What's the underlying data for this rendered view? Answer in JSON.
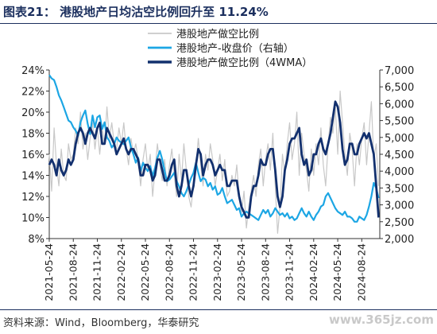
{
  "header": {
    "title": "图表21：   港股地产日均沽空比例回升至 11.24%"
  },
  "footer": {
    "source": "资料来源：Wind，Bloomberg，华泰研究"
  },
  "watermark": {
    "text": "www.365jz.com"
  },
  "chart_data": {
    "type": "line",
    "legend_position": "top-center",
    "grid": false,
    "x_ticks": [
      "2021-05-24",
      "2021-08-24",
      "2021-11-24",
      "2022-02-24",
      "2022-05-24",
      "2022-08-24",
      "2022-11-24",
      "2023-02-24",
      "2023-05-24",
      "2023-08-24",
      "2023-11-24",
      "2024-02-24",
      "2024-05-24",
      "2024-08-24"
    ],
    "y_left": {
      "range": [
        8,
        24
      ],
      "ticks": [
        "24%",
        "22%",
        "20%",
        "18%",
        "16%",
        "14%",
        "12%",
        "10%",
        "8%"
      ]
    },
    "y_right": {
      "range": [
        2000,
        7000
      ],
      "ticks": [
        "7,000",
        "6,500",
        "6,000",
        "5,500",
        "5,000",
        "4,500",
        "4,000",
        "3,500",
        "3,000",
        "2,500",
        "2,000"
      ]
    },
    "series": [
      {
        "name": "港股地产做空比例",
        "axis": "left",
        "color": "#c8c8c8",
        "x_ticks_index": [
          0.0,
          0.1,
          0.2,
          0.3,
          0.4,
          0.5,
          0.6,
          0.7,
          0.8,
          0.9,
          1.0,
          1.1,
          1.2,
          1.3,
          1.4,
          1.5,
          1.6,
          1.7,
          1.8,
          1.9,
          2.0,
          2.1,
          2.2,
          2.3,
          2.4,
          2.5,
          2.6,
          2.7,
          2.8,
          2.9,
          3.0,
          3.1,
          3.2,
          3.3,
          3.4,
          3.5,
          3.6,
          3.7,
          3.8,
          3.9,
          4.0,
          4.1,
          4.2,
          4.3,
          4.4,
          4.5,
          4.6,
          4.7,
          4.8,
          4.9,
          5.0,
          5.1,
          5.2,
          5.3,
          5.4,
          5.5,
          5.6,
          5.7,
          5.8,
          5.9,
          6.0,
          6.1,
          6.2,
          6.3,
          6.4,
          6.5,
          6.6,
          6.7,
          6.8,
          6.9,
          7.0,
          7.1,
          7.2,
          7.3,
          7.4,
          7.5,
          7.6,
          7.7,
          7.8,
          7.9,
          8.0,
          8.1,
          8.2,
          8.3,
          8.4,
          8.5,
          8.6,
          8.7,
          8.8,
          8.9,
          9.0,
          9.1,
          9.2,
          9.3,
          9.4,
          9.5,
          9.6,
          9.7,
          9.8,
          9.9,
          10.0,
          10.1,
          10.2,
          10.3,
          10.4,
          10.5,
          10.6,
          10.7,
          10.8,
          10.9,
          11.0,
          11.1,
          11.2,
          11.3,
          11.4,
          11.5,
          11.6,
          11.7,
          11.8,
          11.9,
          12.0,
          12.1,
          12.2,
          12.3,
          12.4,
          12.5,
          12.6,
          12.7,
          12.8,
          12.9,
          13.0,
          13.1,
          13.2,
          13.3,
          13.4,
          13.5,
          13.6,
          13.7
        ],
        "values": [
          16,
          12.5,
          18.5,
          15,
          13,
          16.5,
          14,
          13.5,
          17,
          15.5,
          16,
          18.5,
          17,
          20,
          16.5,
          18,
          15.5,
          17.5,
          19,
          16.5,
          18.5,
          16,
          18.5,
          17,
          20.5,
          17.5,
          19,
          17,
          16.5,
          18.5,
          17,
          19,
          16.5,
          15,
          17.5,
          16,
          17,
          15.5,
          13,
          15.5,
          17,
          14.5,
          16,
          12,
          14.5,
          17,
          15,
          13.5,
          15.5,
          13,
          15,
          16.5,
          14,
          12,
          16,
          13.5,
          17,
          14.5,
          12,
          11,
          13,
          15,
          17.5,
          15,
          13,
          16,
          14.5,
          17,
          15.5,
          13,
          14.5,
          16,
          13.5,
          15.5,
          12,
          12.5,
          14,
          13,
          15,
          12,
          10.5,
          12.5,
          9,
          11,
          12.5,
          14,
          12,
          15,
          16.5,
          13,
          15.5,
          17,
          14.5,
          18,
          13,
          8.5,
          11,
          16,
          14,
          17,
          19,
          15.5,
          17,
          20,
          14,
          18,
          16,
          14.5,
          12.5,
          16.5,
          14,
          17,
          15,
          18.5,
          15,
          13,
          17,
          19.5,
          18,
          20.5,
          16,
          22,
          19,
          16,
          14,
          18,
          16.5,
          13,
          17,
          15,
          17.5,
          19,
          15,
          18,
          21,
          15.5,
          17,
          13,
          11,
          9,
          8.5,
          9.5,
          11.5,
          12,
          8.5,
          10
        ]
      },
      {
        "name": "港股地产-收盘价（右轴）",
        "axis": "right",
        "color": "#1ca6e4",
        "x_ticks_index": [
          0.0,
          0.1,
          0.2,
          0.3,
          0.4,
          0.5,
          0.6,
          0.7,
          0.8,
          0.9,
          1.0,
          1.1,
          1.2,
          1.3,
          1.4,
          1.5,
          1.6,
          1.7,
          1.8,
          1.9,
          2.0,
          2.1,
          2.2,
          2.3,
          2.4,
          2.5,
          2.6,
          2.7,
          2.8,
          2.9,
          3.0,
          3.1,
          3.2,
          3.3,
          3.4,
          3.5,
          3.6,
          3.7,
          3.8,
          3.9,
          4.0,
          4.1,
          4.2,
          4.3,
          4.4,
          4.5,
          4.6,
          4.7,
          4.8,
          4.9,
          5.0,
          5.1,
          5.2,
          5.3,
          5.4,
          5.5,
          5.6,
          5.7,
          5.8,
          5.9,
          6.0,
          6.1,
          6.2,
          6.3,
          6.4,
          6.5,
          6.6,
          6.7,
          6.8,
          6.9,
          7.0,
          7.1,
          7.2,
          7.3,
          7.4,
          7.5,
          7.6,
          7.7,
          7.8,
          7.9,
          8.0,
          8.1,
          8.2,
          8.3,
          8.4,
          8.5,
          8.6,
          8.7,
          8.8,
          8.9,
          9.0,
          9.1,
          9.2,
          9.3,
          9.4,
          9.5,
          9.6,
          9.7,
          9.8,
          9.9,
          10.0,
          10.1,
          10.2,
          10.3,
          10.4,
          10.5,
          10.6,
          10.7,
          10.8,
          10.9,
          11.0,
          11.1,
          11.2,
          11.3,
          11.4,
          11.5,
          11.6,
          11.7,
          11.8,
          11.9,
          12.0,
          12.1,
          12.2,
          12.3,
          12.4,
          12.5,
          12.6,
          12.7,
          12.8,
          12.9,
          13.0,
          13.1,
          13.2,
          13.3,
          13.4,
          13.5,
          13.6,
          13.7
        ],
        "values": [
          6850,
          6750,
          6700,
          6500,
          6250,
          6100,
          5900,
          5700,
          5500,
          5450,
          5300,
          5200,
          5050,
          5450,
          5650,
          5800,
          5400,
          5100,
          5650,
          5300,
          5600,
          5650,
          5250,
          5450,
          5000,
          4900,
          4700,
          4800,
          5000,
          4900,
          4850,
          4800,
          4900,
          5000,
          4700,
          4500,
          4250,
          4400,
          4000,
          4250,
          4100,
          4000,
          4150,
          3850,
          4100,
          4400,
          4600,
          4350,
          4000,
          3700,
          3750,
          3850,
          3950,
          3700,
          3550,
          3350,
          3250,
          3400,
          3600,
          3800,
          3950,
          4250,
          3950,
          3700,
          3800,
          3750,
          3550,
          3650,
          3450,
          3550,
          3300,
          3350,
          3500,
          3250,
          3050,
          3100,
          3150,
          3000,
          2850,
          2900,
          2650,
          2750,
          2800,
          2750,
          2700,
          2650,
          2600,
          2550,
          2700,
          2850,
          2750,
          2850,
          2650,
          2750,
          2900,
          2800,
          2700,
          2750,
          2650,
          2750,
          2600,
          2650,
          2550,
          2600,
          2750,
          2900,
          2750,
          2650,
          2800,
          2650,
          2550,
          2700,
          2800,
          2950,
          3000,
          3250,
          3350,
          3200,
          3050,
          2900,
          2800,
          2750,
          2700,
          2800,
          2650,
          2650,
          2600,
          2500,
          2500,
          2650,
          2600,
          2550,
          2700,
          2950,
          3250,
          3650,
          3500,
          3200,
          3300,
          3150
        ]
      },
      {
        "name": "港股地产做空比例（4WMA）",
        "axis": "left",
        "color": "#12306e",
        "x_ticks_index": [
          0.0,
          0.1,
          0.2,
          0.3,
          0.4,
          0.5,
          0.6,
          0.7,
          0.8,
          0.9,
          1.0,
          1.1,
          1.2,
          1.3,
          1.4,
          1.5,
          1.6,
          1.7,
          1.8,
          1.9,
          2.0,
          2.1,
          2.2,
          2.3,
          2.4,
          2.5,
          2.6,
          2.7,
          2.8,
          2.9,
          3.0,
          3.1,
          3.2,
          3.3,
          3.4,
          3.5,
          3.6,
          3.7,
          3.8,
          3.9,
          4.0,
          4.1,
          4.2,
          4.3,
          4.4,
          4.5,
          4.6,
          4.7,
          4.8,
          4.9,
          5.0,
          5.1,
          5.2,
          5.3,
          5.4,
          5.5,
          5.6,
          5.7,
          5.8,
          5.9,
          6.0,
          6.1,
          6.2,
          6.3,
          6.4,
          6.5,
          6.6,
          6.7,
          6.8,
          6.9,
          7.0,
          7.1,
          7.2,
          7.3,
          7.4,
          7.5,
          7.6,
          7.7,
          7.8,
          7.9,
          8.0,
          8.1,
          8.2,
          8.3,
          8.4,
          8.5,
          8.6,
          8.7,
          8.8,
          8.9,
          9.0,
          9.1,
          9.2,
          9.3,
          9.4,
          9.5,
          9.6,
          9.7,
          9.8,
          9.9,
          10.0,
          10.1,
          10.2,
          10.3,
          10.4,
          10.5,
          10.6,
          10.7,
          10.8,
          10.9,
          11.0,
          11.1,
          11.2,
          11.3,
          11.4,
          11.5,
          11.6,
          11.7,
          11.8,
          11.9,
          12.0,
          12.1,
          12.2,
          12.3,
          12.4,
          12.5,
          12.6,
          12.7,
          12.8,
          12.9,
          13.0,
          13.1,
          13.2,
          13.3,
          13.4,
          13.5,
          13.6,
          13.7
        ],
        "values": [
          15,
          15.5,
          15,
          14,
          15.5,
          14.5,
          14,
          14.5,
          15.5,
          15,
          15.5,
          17,
          18,
          18.5,
          18,
          17,
          18,
          18.5,
          18,
          17.5,
          18.5,
          19,
          17,
          17,
          18.5,
          18,
          17.5,
          17,
          16,
          16.5,
          17,
          17.5,
          16.5,
          16,
          16.5,
          16.5,
          16,
          15.5,
          14,
          14,
          15,
          15,
          14.5,
          13.5,
          14,
          15.5,
          15.5,
          14.5,
          13.5,
          13.5,
          14,
          15,
          15.5,
          13,
          12,
          13,
          14.5,
          14.5,
          13,
          12,
          13,
          15,
          16.5,
          16,
          14,
          15,
          15.5,
          15.5,
          15,
          14,
          14.5,
          15,
          14.5,
          14.5,
          13,
          13,
          13.5,
          13.5,
          13.5,
          12,
          11,
          10.5,
          10,
          10,
          12,
          13,
          13,
          14,
          15.5,
          15,
          15,
          16,
          16.5,
          16.5,
          14.5,
          12,
          11,
          12,
          14.5,
          15.5,
          17,
          17.5,
          17.5,
          18,
          18.5,
          16,
          15,
          15.5,
          14,
          14.5,
          16,
          16,
          17,
          17.5,
          16.5,
          16,
          17,
          18,
          19.5,
          21,
          20.5,
          19,
          16.5,
          15,
          15.5,
          17,
          17,
          16,
          16,
          17,
          17.5,
          18,
          17.5,
          18,
          17,
          16,
          13,
          10,
          9,
          9.5,
          9.5,
          10.5
        ]
      }
    ]
  }
}
